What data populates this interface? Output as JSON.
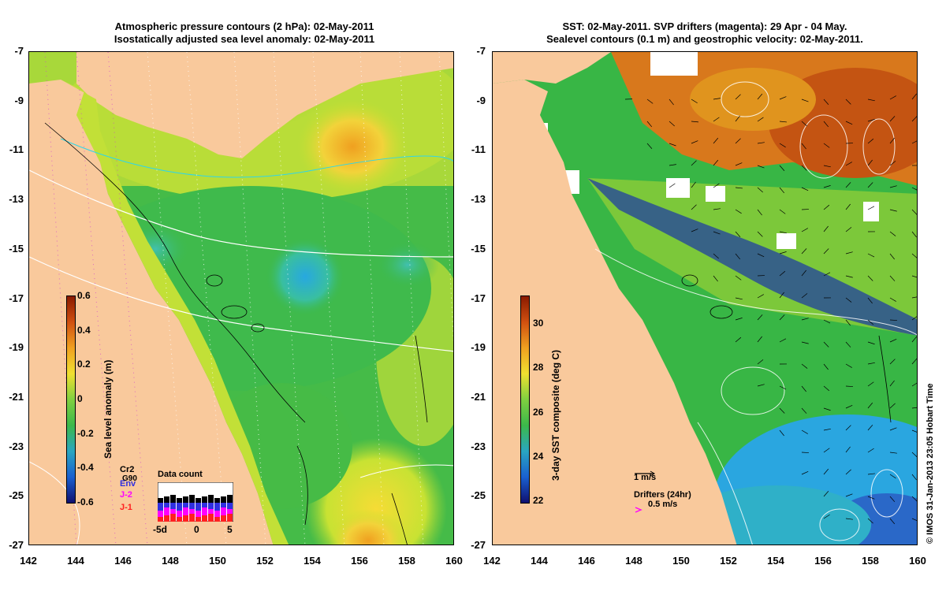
{
  "left_panel": {
    "title_line1": "Atmospheric pressure contours (2 hPa): 02-May-2011",
    "title_line2": "Isostatically adjusted sea level anomaly: 02-May-2011",
    "colorbar": {
      "label": "Sea level anomaly (m)",
      "ticks": [
        "0.6",
        "0.4",
        "0.2",
        "0",
        "-0.2",
        "-0.4",
        "-0.6"
      ]
    },
    "satellites": [
      "Cr2",
      "Env",
      "J-2",
      "J-1"
    ],
    "satellite_overlay": "G90",
    "data_count": {
      "title": "Data count",
      "ticks": [
        "-5d",
        "0",
        "5"
      ]
    }
  },
  "right_panel": {
    "title_line1": "SST: 02-May-2011. SVP drifters (magenta): 29 Apr - 04 May.",
    "title_line2": "Sealevel contours (0.1 m) and geostrophic velocity: 02-May-2011.",
    "colorbar": {
      "label": "3-day SST composite (deg C)",
      "ticks": [
        "30",
        "28",
        "26",
        "24",
        "22"
      ]
    },
    "velocity_scale": "1 m/s",
    "drifters_label": "Drifters (24hr)",
    "drifters_scale": "0.5 m/s"
  },
  "axes": {
    "y_ticks": [
      "-7",
      "-9",
      "-11",
      "-13",
      "-15",
      "-17",
      "-19",
      "-21",
      "-23",
      "-25",
      "-27"
    ],
    "x_ticks": [
      "142",
      "144",
      "146",
      "148",
      "150",
      "152",
      "154",
      "156",
      "158",
      "160"
    ]
  },
  "credit": "© IMOS 31-Jan-2013 23:05 Hobart Time",
  "colors": {
    "land": "#f9c99c",
    "ocean_mid": "#3cb94a",
    "anomaly_positive": "#f0d030",
    "anomaly_negative": "#2fb8d8",
    "sst_warm": "#c84a0a",
    "sst_cool": "#2aa6e0",
    "contour_white": "#ffffff",
    "drifter_magenta": "#ff00ff"
  }
}
